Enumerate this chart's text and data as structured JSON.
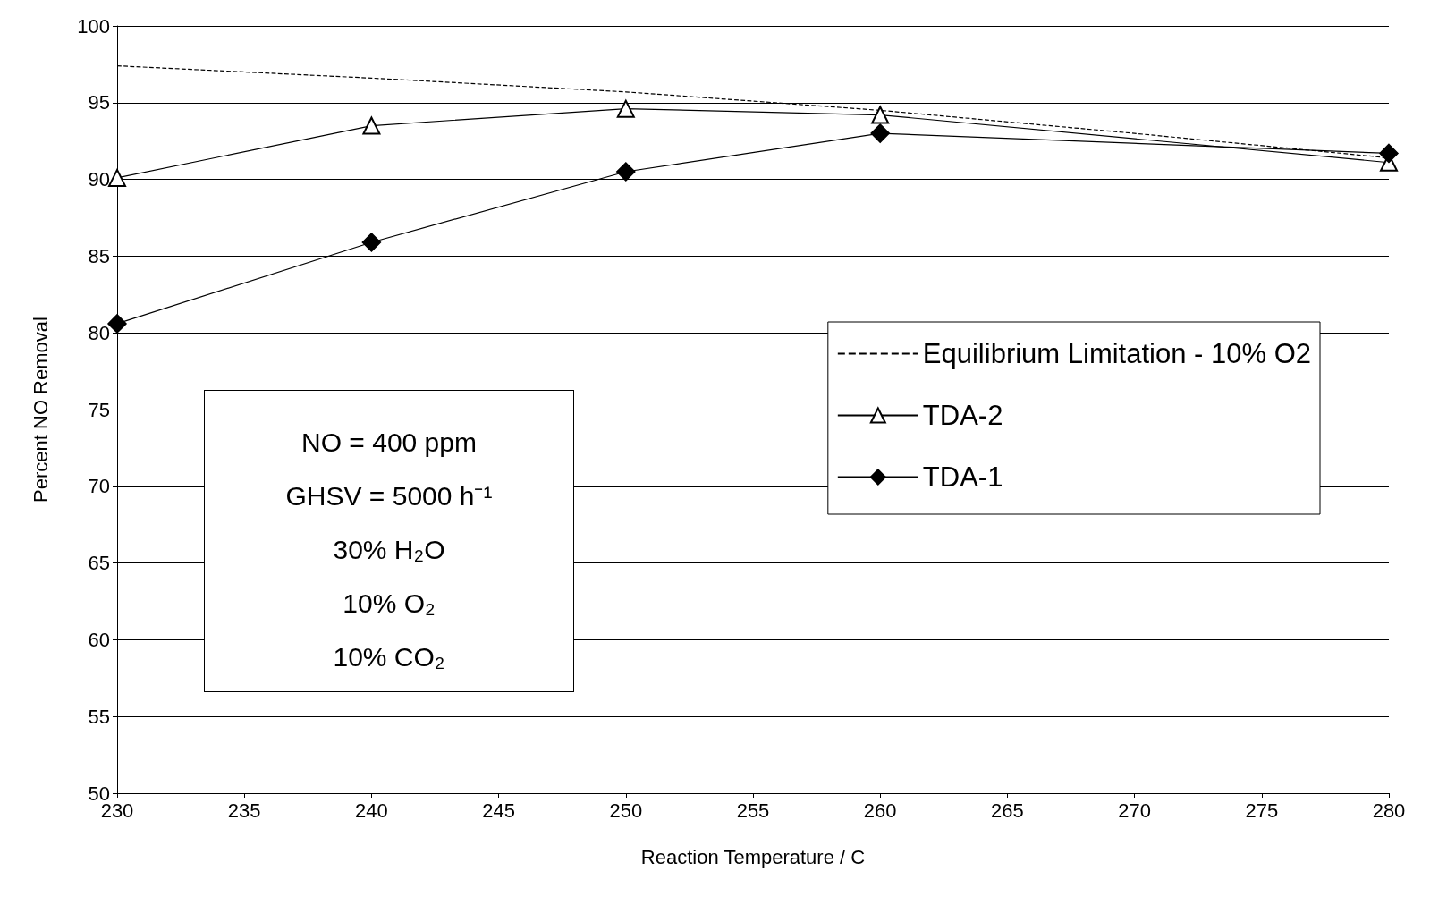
{
  "chart_data": {
    "type": "line",
    "xlabel": "Reaction Temperature / C",
    "ylabel": "Percent NO Removal",
    "x": [
      230,
      240,
      250,
      260,
      280
    ],
    "series": [
      {
        "name": "Equilibrium Limitation - 10% O2",
        "color": "#000000",
        "x": [
          230,
          240,
          250,
          260,
          270,
          280
        ],
        "values": [
          97.4,
          96.6,
          95.7,
          94.5,
          93.0,
          91.4
        ],
        "marker": "none",
        "line_style": "dashed"
      },
      {
        "name": "TDA-2",
        "color": "#000000",
        "values": [
          90.1,
          93.5,
          94.6,
          94.2,
          91.1
        ],
        "marker": "triangle",
        "line_style": "solid"
      },
      {
        "name": "TDA-1",
        "color": "#000000",
        "values": [
          80.6,
          85.9,
          90.5,
          93.0,
          91.7
        ],
        "marker": "diamond",
        "line_style": "solid"
      }
    ],
    "xlim": [
      230,
      280
    ],
    "xticks": [
      230,
      235,
      240,
      245,
      250,
      255,
      260,
      265,
      270,
      275,
      280
    ],
    "ylim": [
      50,
      100
    ],
    "yticks": [
      50,
      55,
      60,
      65,
      70,
      75,
      80,
      85,
      90,
      95,
      100
    ],
    "grid": "y",
    "legend": "right",
    "annotations": [
      "NO = 400 ppm",
      "GHSV = 5000 h⁻¹",
      "30% H₂O",
      "10% O₂",
      "10% CO₂"
    ]
  }
}
